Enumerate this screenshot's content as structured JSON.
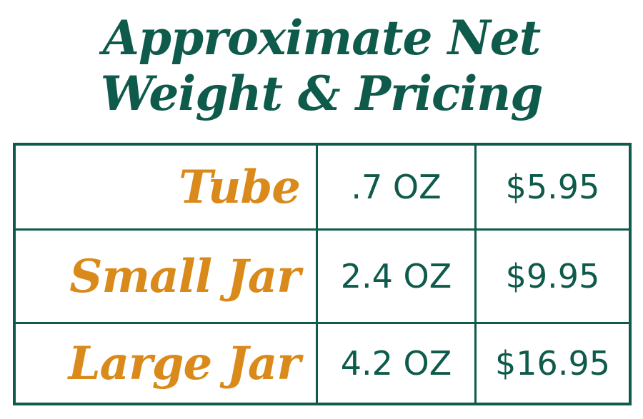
{
  "title": {
    "line1": "Approximate Net",
    "line2": "Weight & Pricing"
  },
  "colors": {
    "primary": "#0e5a4b",
    "accent": "#d98a1a"
  },
  "rows": [
    {
      "name": "Tube",
      "weight": ".7 OZ",
      "price": "$5.95"
    },
    {
      "name": "Small Jar",
      "weight": "2.4 OZ",
      "price": "$9.95"
    },
    {
      "name": "Large Jar",
      "weight": "4.2 OZ",
      "price": "$16.95"
    }
  ]
}
